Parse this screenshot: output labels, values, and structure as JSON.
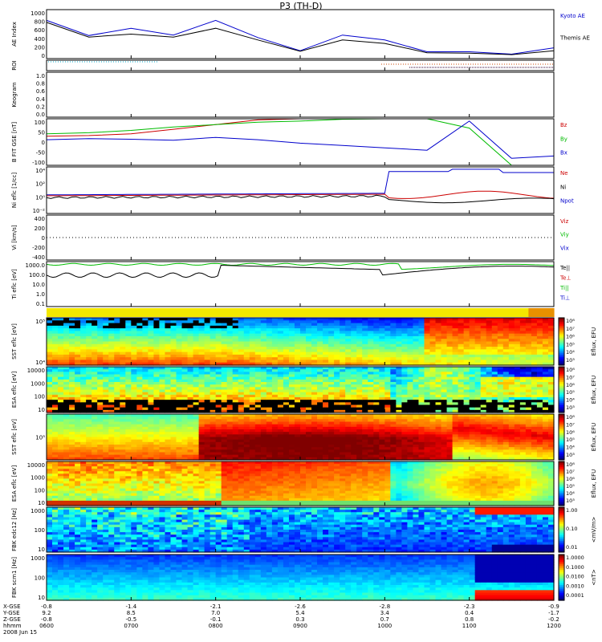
{
  "title": "P3 (TH-D)",
  "panels": [
    {
      "id": "ae",
      "ylabel": "AE Index",
      "yticks": [
        "1000",
        "800",
        "600",
        "400",
        "200",
        "0"
      ],
      "legend": [
        {
          "text": "Kyoto AE",
          "color": "#0000cc"
        },
        {
          "text": "Themis AE",
          "color": "#000000"
        }
      ]
    },
    {
      "id": "roi",
      "ylabel": "ROI",
      "yticks": [],
      "legend": []
    },
    {
      "id": "keogram",
      "ylabel": "Keogram",
      "yticks": [
        "1.0",
        "0.8",
        "0.6",
        "0.4",
        "0.2",
        "0.0"
      ],
      "legend": []
    },
    {
      "id": "bfit",
      "ylabel": "B FIT GSE [nT]",
      "yticks": [
        "100",
        "50",
        "0",
        "-50",
        "-100"
      ],
      "legend": [
        {
          "text": "Bz",
          "color": "#cc0000"
        },
        {
          "text": "By",
          "color": "#00bb00"
        },
        {
          "text": "Bx",
          "color": "#0000cc"
        }
      ]
    },
    {
      "id": "ni",
      "ylabel": "Ni eflc [1/cc]",
      "yticks": [
        "10⁴",
        "10²",
        "10⁰",
        "10⁻²"
      ],
      "legend": [
        {
          "text": "Ne",
          "color": "#cc0000"
        },
        {
          "text": "Ni",
          "color": "#000000"
        },
        {
          "text": "Npot",
          "color": "#0000cc"
        }
      ]
    },
    {
      "id": "vi",
      "ylabel": "Vi [km/s]",
      "yticks": [
        "400",
        "200",
        "0",
        "-200",
        "-400"
      ],
      "legend": [
        {
          "text": "Viz",
          "color": "#cc0000"
        },
        {
          "text": "Viy",
          "color": "#00bb00"
        },
        {
          "text": "Vix",
          "color": "#0000cc"
        }
      ]
    },
    {
      "id": "ti",
      "ylabel": "Ti eflc [eV]",
      "yticks": [
        "1000.0",
        "100.0",
        "10.0",
        "1.0",
        "0.1"
      ],
      "legend": [
        {
          "text": "Te||",
          "color": "#000000"
        },
        {
          "text": "Te⊥",
          "color": "#cc0000"
        },
        {
          "text": "Ti||",
          "color": "#00bb00"
        },
        {
          "text": "Ti⊥",
          "color": "#0000cc"
        }
      ]
    },
    {
      "id": "sst_e",
      "ylabel": "SST eflc [eV]",
      "yticks": [
        "10⁵",
        "10⁴"
      ],
      "legend": []
    },
    {
      "id": "esa_e",
      "ylabel": "ESA eflc [eV]",
      "yticks": [
        "10000",
        "1000",
        "100",
        "10"
      ],
      "legend": []
    },
    {
      "id": "sst_i",
      "ylabel": "SST eflc [eV]",
      "yticks": [
        "10⁵"
      ],
      "legend": []
    },
    {
      "id": "esa_i",
      "ylabel": "ESA eflc [eV]",
      "yticks": [
        "10000",
        "1000",
        "100",
        "10"
      ],
      "legend": []
    },
    {
      "id": "fbk1",
      "ylabel": "FBK edc12 [Hz]",
      "yticks": [
        "1000",
        "100",
        "10"
      ],
      "legend": []
    },
    {
      "id": "fbk2",
      "ylabel": "FBK scm1 [Hz]",
      "yticks": [
        "1000",
        "100",
        "10"
      ],
      "legend": []
    }
  ],
  "colorbars": [
    {
      "title": "Eflux, EFU",
      "ticks": [
        "10⁸",
        "10⁷",
        "10⁶",
        "10⁵",
        "10⁴",
        "10³"
      ]
    },
    {
      "title": "Eflux, EFU",
      "ticks": [
        "10⁸",
        "10⁷",
        "10⁶",
        "10⁵",
        "10⁴",
        "10³"
      ]
    },
    {
      "title": "Eflux, EFU",
      "ticks": [
        "10⁸",
        "10⁷",
        "10⁶",
        "10⁵",
        "10⁴",
        "10³"
      ]
    },
    {
      "title": "Eflux, EFU",
      "ticks": [
        "10⁸",
        "10⁷",
        "10⁶",
        "10⁵",
        "10⁴",
        "10³"
      ]
    },
    {
      "title": "<mV/m>",
      "ticks": [
        "1.00",
        "0.10",
        "0.01"
      ]
    },
    {
      "title": "<nT>",
      "ticks": [
        "1.0000",
        "0.1000",
        "0.0100",
        "0.0010",
        "0.0001"
      ]
    }
  ],
  "xaxis": {
    "row_labels": [
      "X-GSE",
      "Y-GSE",
      "Z-GSE",
      "hhmm",
      "2008 Jun 15"
    ],
    "ticks": [
      {
        "x": "-0.8",
        "y": "9.2",
        "z": "-0.8",
        "t": "0600"
      },
      {
        "x": "-1.4",
        "y": "8.5",
        "z": "-0.5",
        "t": "0700"
      },
      {
        "x": "-2.1",
        "y": "7.0",
        "z": "-0.1",
        "t": "0800"
      },
      {
        "x": "-2.6",
        "y": "5.4",
        "z": "0.3",
        "t": "0900"
      },
      {
        "x": "-2.8",
        "y": "3.4",
        "z": "0.7",
        "t": "1000"
      },
      {
        "x": "-2.3",
        "y": "0.4",
        "z": "0.8",
        "t": "1100"
      },
      {
        "x": "-0.9",
        "y": "-1.7",
        "z": "-0.2",
        "t": "1200"
      }
    ]
  },
  "chart_data": [
    {
      "type": "line",
      "title": "P3 (TH-D)",
      "ylabel": "AE Index",
      "x": [
        "0600",
        "0630",
        "0700",
        "0730",
        "0800",
        "0830",
        "0900",
        "0930",
        "1000",
        "1030",
        "1100",
        "1130",
        "1200"
      ],
      "ylim": [
        0,
        1000
      ],
      "series": [
        {
          "name": "Kyoto AE",
          "color": "#0000cc",
          "values": [
            780,
            470,
            620,
            480,
            780,
            430,
            160,
            480,
            380,
            140,
            140,
            90,
            220
          ]
        },
        {
          "name": "Themis AE",
          "color": "#000000",
          "values": [
            740,
            440,
            500,
            440,
            620,
            380,
            150,
            380,
            310,
            120,
            110,
            80,
            160
          ]
        }
      ]
    },
    {
      "type": "line",
      "ylabel": "B FIT GSE [nT]",
      "x": [
        "0600",
        "0630",
        "0700",
        "0730",
        "0800",
        "0830",
        "0900",
        "0930",
        "1000",
        "1030",
        "1100",
        "1130",
        "1200"
      ],
      "ylim": [
        -100,
        100
      ],
      "series": [
        {
          "name": "Bz",
          "color": "#cc0000",
          "values": [
            25,
            28,
            35,
            55,
            75,
            95,
            100,
            null,
            null,
            null,
            null,
            null,
            null
          ]
        },
        {
          "name": "By",
          "color": "#00bb00",
          "values": [
            35,
            40,
            50,
            65,
            75,
            85,
            90,
            98,
            100,
            100,
            60,
            -100,
            -100
          ]
        },
        {
          "name": "Bx",
          "color": "#0000cc",
          "values": [
            10,
            15,
            12,
            8,
            20,
            10,
            -5,
            -15,
            -25,
            -35,
            90,
            -70,
            -60
          ]
        }
      ]
    },
    {
      "type": "line",
      "ylabel": "Vi [km/s]",
      "x": [
        "0600",
        "1200"
      ],
      "ylim": [
        -400,
        400
      ],
      "series": [
        {
          "name": "Viz",
          "color": "#cc0000",
          "values": [
            0,
            0
          ]
        },
        {
          "name": "Viy",
          "color": "#00bb00",
          "values": [
            0,
            0
          ]
        },
        {
          "name": "Vix",
          "color": "#0000cc",
          "values": [
            0,
            0
          ]
        }
      ]
    },
    {
      "type": "heatmap",
      "ylabel": "ESA eflc [eV]",
      "x": [
        "0600",
        "0700",
        "0800",
        "0900",
        "1000",
        "1100",
        "1200"
      ],
      "ylim": [
        10,
        10000
      ]
    }
  ]
}
